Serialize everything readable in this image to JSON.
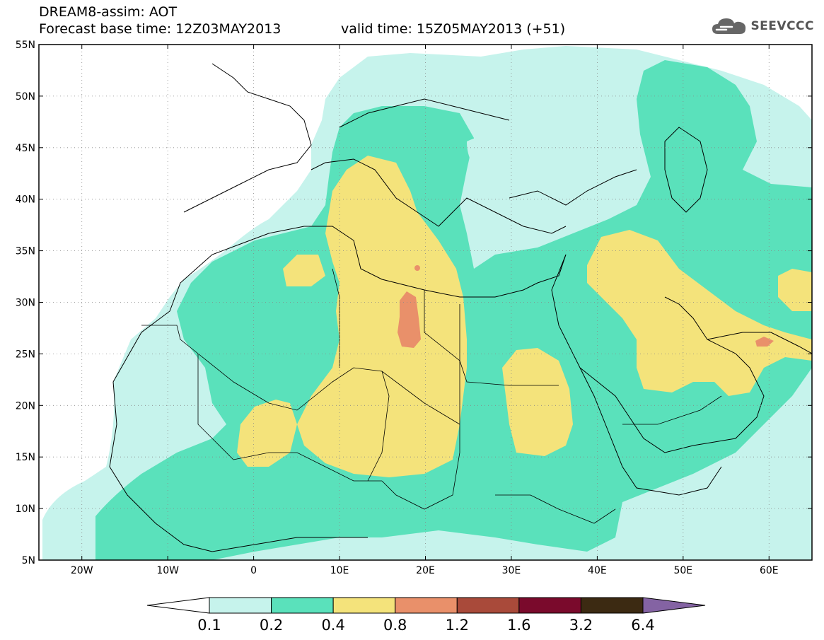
{
  "header": {
    "title_line1": "DREAM8-assim: AOT",
    "title_line2": "Forecast base time: 12Z03MAY2013",
    "valid_time": "valid time: 15Z05MAY2013 (+51)",
    "logo_text": "SEEVCCC",
    "logo_icon": "cloud-icon"
  },
  "map": {
    "lon_range": [
      -25,
      65
    ],
    "lat_range": [
      5,
      55
    ],
    "lon_ticks": [
      {
        "value": -20,
        "label": "20W"
      },
      {
        "value": -10,
        "label": "10W"
      },
      {
        "value": 0,
        "label": "0"
      },
      {
        "value": 10,
        "label": "10E"
      },
      {
        "value": 20,
        "label": "20E"
      },
      {
        "value": 30,
        "label": "30E"
      },
      {
        "value": 40,
        "label": "40E"
      },
      {
        "value": 50,
        "label": "50E"
      },
      {
        "value": 60,
        "label": "60E"
      }
    ],
    "lat_ticks": [
      {
        "value": 5,
        "label": "5N"
      },
      {
        "value": 10,
        "label": "10N"
      },
      {
        "value": 15,
        "label": "15N"
      },
      {
        "value": 20,
        "label": "20N"
      },
      {
        "value": 25,
        "label": "25N"
      },
      {
        "value": 30,
        "label": "30N"
      },
      {
        "value": 35,
        "label": "35N"
      },
      {
        "value": 40,
        "label": "40N"
      },
      {
        "value": 45,
        "label": "45N"
      },
      {
        "value": 50,
        "label": "50N"
      },
      {
        "value": 55,
        "label": "55N"
      }
    ],
    "grid": "dotted"
  },
  "colorbar": {
    "levels": [
      "0.1",
      "0.2",
      "0.4",
      "0.8",
      "1.2",
      "1.6",
      "3.2",
      "6.4"
    ],
    "colors": [
      "#ffffff",
      "#c6f3ec",
      "#5ae1bb",
      "#f4e37b",
      "#e9906a",
      "#a94a3a",
      "#7a0a2c",
      "#3c2a12",
      "#8463a3"
    ]
  },
  "colors": {
    "level_0_1": "#c6f3ec",
    "level_0_2": "#5ae1bb",
    "level_0_4": "#f4e37b",
    "level_0_8": "#e9906a"
  }
}
